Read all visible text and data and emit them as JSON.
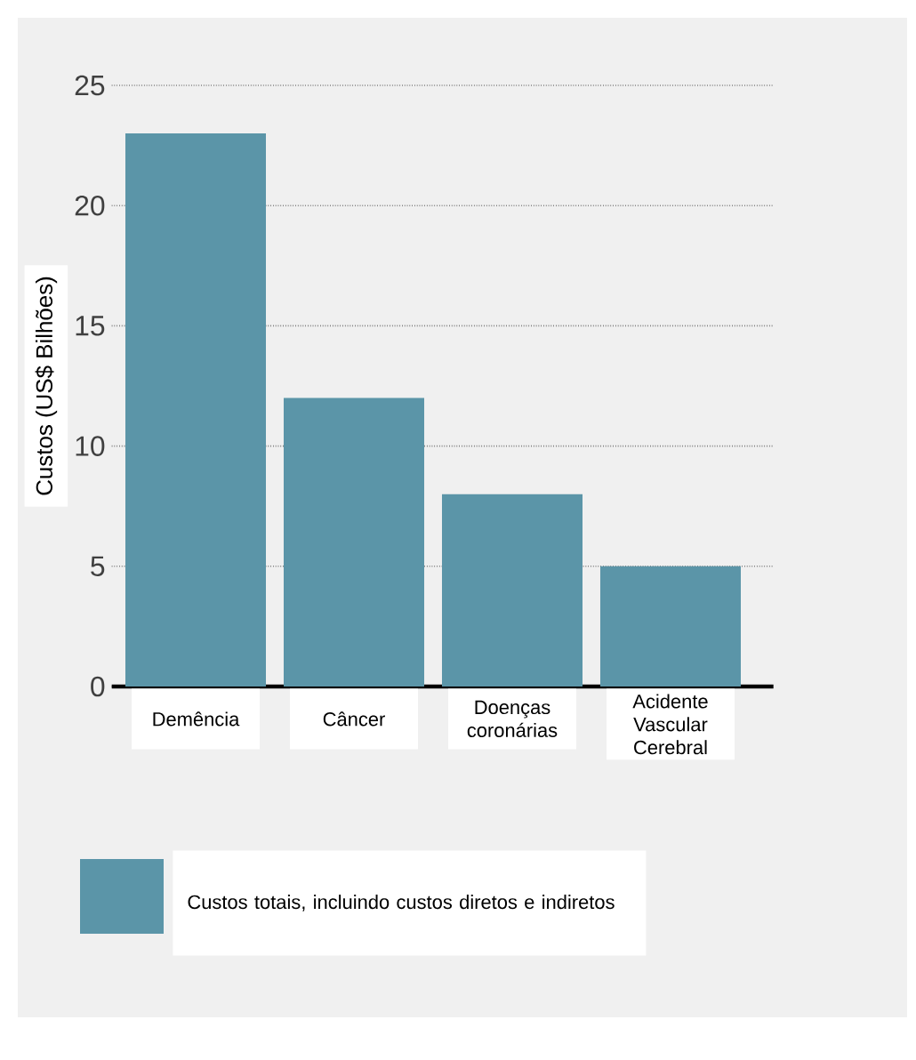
{
  "chart_data": {
    "type": "bar",
    "ylabel": "Custos (US$ Bilhões)",
    "categories": [
      "Demência",
      "Câncer",
      "Doenças coronárias",
      "Acidente Vascular Cerebral"
    ],
    "series": [
      {
        "name": "Custos totais, incluindo custos diretos e indiretos",
        "color": "#5b95a8",
        "values": [
          23,
          12,
          8,
          5
        ]
      }
    ],
    "ylim": [
      0,
      25
    ],
    "yticks": [
      0,
      5,
      10,
      15,
      20,
      25
    ],
    "grid": "y",
    "legend": "bottom"
  }
}
